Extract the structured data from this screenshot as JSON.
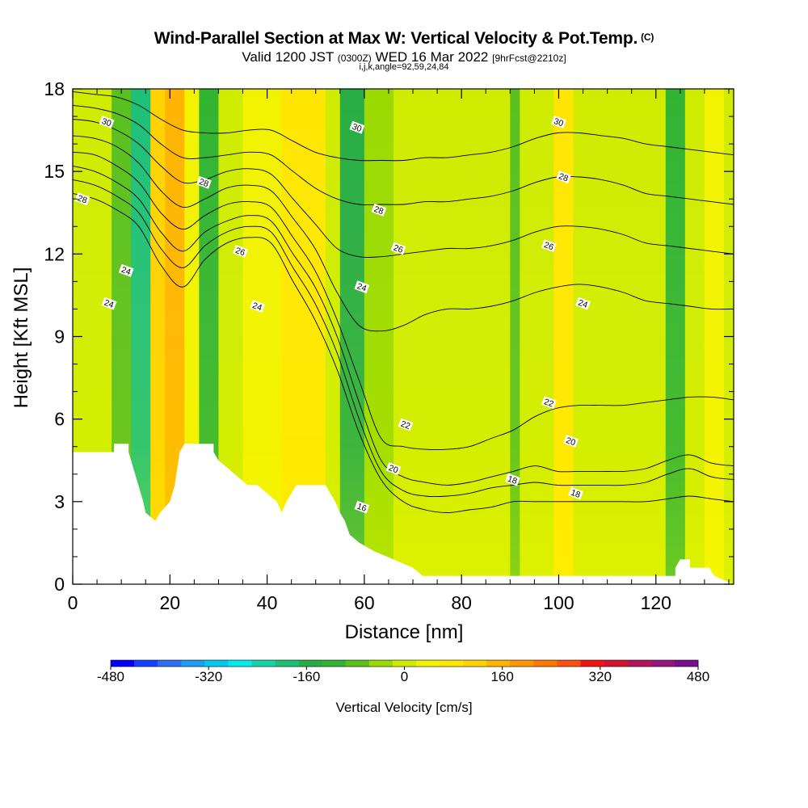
{
  "title": {
    "main": "Wind-Parallel Section at Max W: Vertical Velocity & Pot.Temp.",
    "corner": "(C)",
    "valid_prefix": "Valid 1200 JST",
    "valid_utc": "(0300Z)",
    "valid_date": "WED 16 Mar 2022",
    "forecast": "[9hrFcst@2210z]",
    "indices": "i,j,k,angle=92,59,24,84"
  },
  "chart_data": {
    "type": "heatmap",
    "xlabel": "Distance [nm]",
    "ylabel": "Height [Kft MSL]",
    "xlim": [
      0,
      136
    ],
    "ylim": [
      0,
      18
    ],
    "x_ticks": [
      0,
      20,
      40,
      60,
      80,
      100,
      120
    ],
    "y_ticks": [
      0,
      3,
      6,
      9,
      12,
      15,
      18
    ],
    "colorbar": {
      "label": "Vertical Velocity [cm/s]",
      "min": -480,
      "max": 480,
      "step": 40,
      "tick_values": [
        -480,
        -320,
        -160,
        0,
        160,
        320,
        480
      ],
      "colors": [
        "#0000ff",
        "#1840ff",
        "#2f6ef2",
        "#1f9cf0",
        "#00c8f0",
        "#00ecec",
        "#14d4a8",
        "#1ec078",
        "#28ad44",
        "#32b432",
        "#5ac01e",
        "#9ada00",
        "#cfec00",
        "#f2f200",
        "#ffe600",
        "#ffd200",
        "#ffb400",
        "#ff9600",
        "#ff7800",
        "#ff5014",
        "#f01414",
        "#d21432",
        "#b4145a",
        "#96147f",
        "#780f8c"
      ]
    },
    "velocity_bands": [
      {
        "x": 0,
        "x2": 8,
        "w": 0
      },
      {
        "x": 8,
        "x2": 12,
        "w": -80
      },
      {
        "x": 12,
        "x2": 16,
        "w": -170
      },
      {
        "x": 16,
        "x2": 19,
        "w": 120
      },
      {
        "x": 19,
        "x2": 23,
        "w": 170
      },
      {
        "x": 23,
        "x2": 26,
        "w": 40
      },
      {
        "x": 26,
        "x2": 30,
        "w": -120
      },
      {
        "x": 30,
        "x2": 35,
        "w": 0
      },
      {
        "x": 35,
        "x2": 43,
        "w": 40
      },
      {
        "x": 43,
        "x2": 48,
        "w": 80
      },
      {
        "x": 48,
        "x2": 52,
        "w": 100
      },
      {
        "x": 52,
        "x2": 55,
        "w": 20
      },
      {
        "x": 55,
        "x2": 60,
        "w": -140
      },
      {
        "x": 60,
        "x2": 66,
        "w": -40
      },
      {
        "x": 66,
        "x2": 74,
        "w": 20
      },
      {
        "x": 74,
        "x2": 85,
        "w": 0
      },
      {
        "x": 85,
        "x2": 90,
        "w": 20
      },
      {
        "x": 90,
        "x2": 92,
        "w": -80
      },
      {
        "x": 92,
        "x2": 99,
        "w": 0
      },
      {
        "x": 99,
        "x2": 103,
        "w": 80
      },
      {
        "x": 103,
        "x2": 112,
        "w": 10
      },
      {
        "x": 112,
        "x2": 122,
        "w": 0
      },
      {
        "x": 122,
        "x2": 126,
        "w": -100
      },
      {
        "x": 126,
        "x2": 130,
        "w": 0
      },
      {
        "x": 130,
        "x2": 134,
        "w": 40
      },
      {
        "x": 134,
        "x2": 136,
        "w": 0
      }
    ],
    "terrain": [
      [
        0,
        4.8
      ],
      [
        8.5,
        4.8
      ],
      [
        8.5,
        5.1
      ],
      [
        11.5,
        5.1
      ],
      [
        11.5,
        4.8
      ],
      [
        12.5,
        4.2
      ],
      [
        13.5,
        3.6
      ],
      [
        14.5,
        3.0
      ],
      [
        15,
        2.6
      ],
      [
        17,
        2.3
      ],
      [
        18,
        2.6
      ],
      [
        20,
        3.0
      ],
      [
        21,
        3.6
      ],
      [
        21.5,
        4.2
      ],
      [
        22,
        4.8
      ],
      [
        23,
        5.1
      ],
      [
        29,
        5.1
      ],
      [
        29,
        4.8
      ],
      [
        30,
        4.5
      ],
      [
        32,
        4.2
      ],
      [
        34,
        3.9
      ],
      [
        36,
        3.6
      ],
      [
        38,
        3.6
      ],
      [
        40,
        3.3
      ],
      [
        42,
        3.0
      ],
      [
        43,
        2.6
      ],
      [
        44,
        3.0
      ],
      [
        45,
        3.3
      ],
      [
        46,
        3.6
      ],
      [
        52,
        3.6
      ],
      [
        53,
        3.3
      ],
      [
        54,
        3.0
      ],
      [
        55,
        2.6
      ],
      [
        56,
        2.3
      ],
      [
        57,
        1.8
      ],
      [
        59,
        1.5
      ],
      [
        62,
        1.2
      ],
      [
        66,
        0.9
      ],
      [
        70,
        0.6
      ],
      [
        72,
        0.3
      ],
      [
        124,
        0.3
      ],
      [
        124,
        0.6
      ],
      [
        125,
        0.9
      ],
      [
        127,
        0.9
      ],
      [
        127,
        0.6
      ],
      [
        131,
        0.6
      ],
      [
        132,
        0.3
      ],
      [
        136,
        0
      ]
    ],
    "contours": [
      {
        "theta": 16,
        "y": [
          14.2,
          14.0,
          13.6,
          13.0,
          11.6,
          10.8,
          11.8,
          12.4,
          12.6,
          12.4,
          11.0,
          9.6,
          7.8,
          5.5,
          3.8,
          3.0,
          2.7,
          2.6,
          2.7,
          2.8,
          3.0,
          3.0,
          3.0,
          3.0,
          3.0,
          3.0,
          3.0,
          3.1,
          3.2,
          3.1,
          3.0
        ]
      },
      {
        "theta": 18,
        "y": [
          14.7,
          14.5,
          14.1,
          13.5,
          12.2,
          11.5,
          12.3,
          12.8,
          13.0,
          12.8,
          11.5,
          10.2,
          8.4,
          6.0,
          4.1,
          3.4,
          3.2,
          3.2,
          3.3,
          3.5,
          3.6,
          3.7,
          3.6,
          3.6,
          3.6,
          3.6,
          3.7,
          4.0,
          4.2,
          3.9,
          3.8
        ]
      },
      {
        "theta": 20,
        "y": [
          15.2,
          15.0,
          14.6,
          14.0,
          12.8,
          12.1,
          12.8,
          13.2,
          13.4,
          13.2,
          12.0,
          10.8,
          9.0,
          6.6,
          4.5,
          3.9,
          3.7,
          3.6,
          3.7,
          3.9,
          4.1,
          4.3,
          4.1,
          4.1,
          4.1,
          4.1,
          4.2,
          4.5,
          4.7,
          4.4,
          4.3
        ]
      },
      {
        "theta": 22,
        "y": [
          15.7,
          15.6,
          15.2,
          14.6,
          13.5,
          12.9,
          13.4,
          13.8,
          13.9,
          13.7,
          12.6,
          11.4,
          9.6,
          7.4,
          5.3,
          5.0,
          4.9,
          4.9,
          5.0,
          5.3,
          5.6,
          6.1,
          6.4,
          6.5,
          6.5,
          6.5,
          6.6,
          6.7,
          6.8,
          6.8,
          6.7
        ]
      },
      {
        "theta": 24,
        "y": [
          16.3,
          16.2,
          15.9,
          15.3,
          14.3,
          13.7,
          14.0,
          14.4,
          14.5,
          14.3,
          13.3,
          12.2,
          10.6,
          9.4,
          9.2,
          9.4,
          9.8,
          10.0,
          10.0,
          10.1,
          10.3,
          10.6,
          10.8,
          10.9,
          10.8,
          10.6,
          10.3,
          10.2,
          10.1,
          10.0,
          10.0
        ]
      },
      {
        "theta": 26,
        "y": [
          16.9,
          16.8,
          16.5,
          16.0,
          15.2,
          14.6,
          14.7,
          15.0,
          15.1,
          14.9,
          14.0,
          13.1,
          12.2,
          11.9,
          11.9,
          12.0,
          12.1,
          12.2,
          12.2,
          12.3,
          12.5,
          12.8,
          13.0,
          13.0,
          12.9,
          12.7,
          12.4,
          12.3,
          12.2,
          12.1,
          12.0
        ]
      },
      {
        "theta": 28,
        "y": [
          17.4,
          17.3,
          17.1,
          16.7,
          16.0,
          15.5,
          15.5,
          15.6,
          15.7,
          15.6,
          15.0,
          14.4,
          14.0,
          13.8,
          13.8,
          13.8,
          13.9,
          13.9,
          14.0,
          14.1,
          14.3,
          14.6,
          14.8,
          14.8,
          14.7,
          14.5,
          14.2,
          14.1,
          14.0,
          13.9,
          13.8
        ]
      },
      {
        "theta": 30,
        "y": [
          17.9,
          17.8,
          17.7,
          17.4,
          16.9,
          16.5,
          16.4,
          16.4,
          16.5,
          16.5,
          16.1,
          15.7,
          15.5,
          15.4,
          15.4,
          15.4,
          15.5,
          15.5,
          15.6,
          15.7,
          15.9,
          16.2,
          16.4,
          16.4,
          16.3,
          16.2,
          16.0,
          15.9,
          15.8,
          15.7,
          15.6
        ]
      }
    ],
    "contour_labels": [
      {
        "x": 7,
        "y": 16.8,
        "text": "30"
      },
      {
        "x": 58.5,
        "y": 16.6,
        "text": "30"
      },
      {
        "x": 100,
        "y": 16.8,
        "text": "30"
      },
      {
        "x": 27,
        "y": 14.6,
        "text": "28"
      },
      {
        "x": 2,
        "y": 14.0,
        "text": "28"
      },
      {
        "x": 63,
        "y": 13.6,
        "text": "28"
      },
      {
        "x": 101,
        "y": 14.8,
        "text": "28"
      },
      {
        "x": 34.5,
        "y": 12.1,
        "text": "26"
      },
      {
        "x": 67,
        "y": 12.2,
        "text": "26"
      },
      {
        "x": 98,
        "y": 12.3,
        "text": "26"
      },
      {
        "x": 11,
        "y": 11.4,
        "text": "24"
      },
      {
        "x": 7.5,
        "y": 10.2,
        "text": "24"
      },
      {
        "x": 38,
        "y": 10.1,
        "text": "24"
      },
      {
        "x": 59.5,
        "y": 10.8,
        "text": "24"
      },
      {
        "x": 105,
        "y": 10.2,
        "text": "24"
      },
      {
        "x": 68.5,
        "y": 5.8,
        "text": "22"
      },
      {
        "x": 98,
        "y": 6.6,
        "text": "22"
      },
      {
        "x": 102.5,
        "y": 5.2,
        "text": "20"
      },
      {
        "x": 66,
        "y": 4.2,
        "text": "20"
      },
      {
        "x": 90.5,
        "y": 3.8,
        "text": "18"
      },
      {
        "x": 103.5,
        "y": 3.3,
        "text": "18"
      },
      {
        "x": 59.5,
        "y": 2.8,
        "text": "16"
      }
    ]
  }
}
